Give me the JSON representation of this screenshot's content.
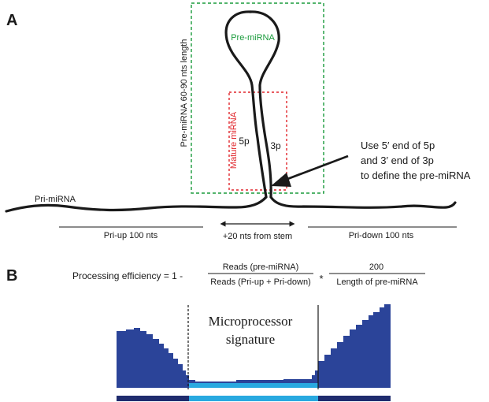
{
  "panel_a": {
    "label": "A",
    "pre_mirna_label": "Pre-miRNA",
    "pre_mirna_length_label": "Pre-miRNA 60-90 nts length",
    "mature_mirna_label": "Mature miRNA",
    "arm_5p": "5p",
    "arm_3p": "3p",
    "pri_mirna_label": "Pri-miRNA",
    "annotation_lines": [
      "Use 5′ end of 5p",
      "and 3′ end of 3p",
      "to define the pre-miRNA"
    ],
    "pri_up_label": "Pri-up 100 nts",
    "pri_down_label": "Pri-down 100 nts",
    "stem_offset_label": "+20 nts from stem"
  },
  "panel_b": {
    "label": "B",
    "formula_prefix": "Processing efficiency = 1 -",
    "numerator_1": "Reads (pre-miRNA)",
    "denominator_1": "Reads (Pri-up + Pri-down)",
    "operator": "*",
    "numerator_2": "200",
    "denominator_2": "Length of pre-miRNA",
    "signature_line_1": "Microprocessor",
    "signature_line_2": "signature"
  },
  "colors": {
    "coverage": "#2b4499",
    "pri_track": "#1f2c6e",
    "pre_track": "#29a9e0",
    "pre_mirna_box": "#1a9b3c",
    "mature_mirna_box": "#e0252b",
    "ink": "#1a1a1a"
  }
}
